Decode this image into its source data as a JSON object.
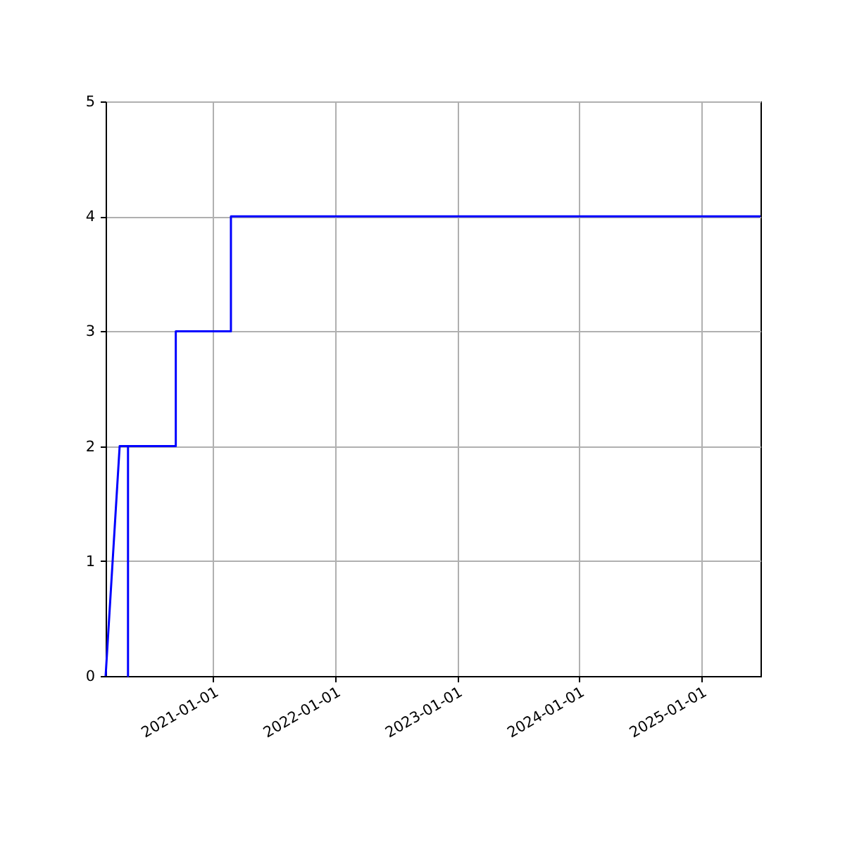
{
  "chart_data": {
    "type": "line",
    "x": [
      "2020-02-14",
      "2020-03-27",
      "2020-04-21",
      "2020-04-21",
      "2020-04-21",
      "2020-09-11",
      "2020-09-11",
      "2021-02-23",
      "2021-02-23",
      "2025-06-27"
    ],
    "series": [
      {
        "color": "#0000ff",
        "values": [
          0,
          2,
          2,
          0,
          2,
          2,
          3,
          3,
          4,
          4
        ]
      }
    ],
    "xlim": [
      "2020-02-14",
      "2025-06-27"
    ],
    "xticks": [
      {
        "value": "2021-01-01",
        "label": "2021-01-01"
      },
      {
        "value": "2022-01-01",
        "label": "2022-01-01"
      },
      {
        "value": "2023-01-01",
        "label": "2023-01-01"
      },
      {
        "value": "2024-01-01",
        "label": "2024-01-01"
      },
      {
        "value": "2025-01-01",
        "label": "2025-01-01"
      }
    ],
    "ylim": [
      0,
      5
    ],
    "yticks": [
      0,
      1,
      2,
      3,
      4,
      5
    ],
    "grid": true,
    "marker": "none",
    "line_style": "solid"
  }
}
